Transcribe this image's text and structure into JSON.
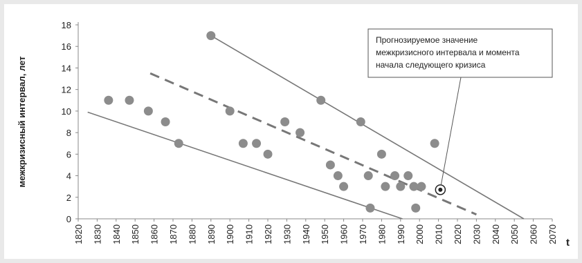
{
  "chart_data": {
    "type": "scatter",
    "title": "",
    "xlabel": "t",
    "ylabel": "межкризисный интервал, лет",
    "xlim": [
      1820,
      2070
    ],
    "ylim": [
      0,
      18
    ],
    "x_ticks": [
      1820,
      1830,
      1840,
      1850,
      1860,
      1870,
      1880,
      1890,
      1900,
      1910,
      1920,
      1930,
      1940,
      1950,
      1960,
      1970,
      1980,
      1990,
      2000,
      2010,
      2020,
      2030,
      2040,
      2050,
      2060,
      2070
    ],
    "y_ticks": [
      0,
      2,
      4,
      6,
      8,
      10,
      12,
      14,
      16,
      18
    ],
    "grid": false,
    "points": [
      {
        "x": 1836,
        "y": 11
      },
      {
        "x": 1847,
        "y": 11
      },
      {
        "x": 1857,
        "y": 10
      },
      {
        "x": 1866,
        "y": 9
      },
      {
        "x": 1873,
        "y": 7
      },
      {
        "x": 1890,
        "y": 17
      },
      {
        "x": 1900,
        "y": 10
      },
      {
        "x": 1907,
        "y": 7
      },
      {
        "x": 1914,
        "y": 7
      },
      {
        "x": 1920,
        "y": 6
      },
      {
        "x": 1929,
        "y": 9
      },
      {
        "x": 1937,
        "y": 8
      },
      {
        "x": 1948,
        "y": 11
      },
      {
        "x": 1953,
        "y": 5
      },
      {
        "x": 1957,
        "y": 4
      },
      {
        "x": 1960,
        "y": 3
      },
      {
        "x": 1969,
        "y": 9
      },
      {
        "x": 1973,
        "y": 4
      },
      {
        "x": 1974,
        "y": 1
      },
      {
        "x": 1980,
        "y": 6
      },
      {
        "x": 1982,
        "y": 3
      },
      {
        "x": 1987,
        "y": 4
      },
      {
        "x": 1990,
        "y": 3
      },
      {
        "x": 1994,
        "y": 4
      },
      {
        "x": 1997,
        "y": 3
      },
      {
        "x": 1998,
        "y": 1
      },
      {
        "x": 2001,
        "y": 3
      },
      {
        "x": 2008,
        "y": 7
      }
    ],
    "lines": [
      {
        "style": "solid",
        "from": {
          "x": 1890,
          "y": 17
        },
        "to": {
          "x": 2055,
          "y": 0
        }
      },
      {
        "style": "solid",
        "from": {
          "x": 1825,
          "y": 9.9
        },
        "to": {
          "x": 1991,
          "y": 0
        }
      },
      {
        "style": "dashed",
        "from": {
          "x": 1858,
          "y": 13.5
        },
        "to": {
          "x": 2030,
          "y": 0.4
        }
      }
    ],
    "forecast_point": {
      "x": 2011,
      "y": 2.7
    },
    "annotation": {
      "lines": [
        "Прогнозируемое значение",
        "межкризисного интервала и момента",
        "начала следующего кризиса"
      ]
    }
  }
}
